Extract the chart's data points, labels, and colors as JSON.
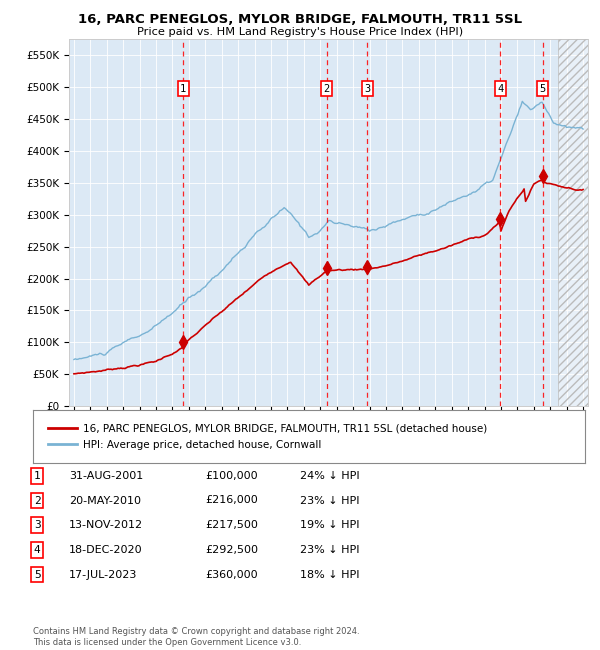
{
  "title": "16, PARC PENEGLOS, MYLOR BRIDGE, FALMOUTH, TR11 5SL",
  "subtitle": "Price paid vs. HM Land Registry's House Price Index (HPI)",
  "background_color": "#dce9f5",
  "hpi_color": "#7ab3d4",
  "price_color": "#cc0000",
  "transactions": [
    {
      "num": 1,
      "date_str": "31-AUG-2001",
      "date_x": 2001.66,
      "price": 100000
    },
    {
      "num": 2,
      "date_str": "20-MAY-2010",
      "date_x": 2010.38,
      "price": 216000
    },
    {
      "num": 3,
      "date_str": "13-NOV-2012",
      "date_x": 2012.87,
      "price": 217500
    },
    {
      "num": 4,
      "date_str": "18-DEC-2020",
      "date_x": 2020.96,
      "price": 292500
    },
    {
      "num": 5,
      "date_str": "17-JUL-2023",
      "date_x": 2023.54,
      "price": 360000
    }
  ],
  "legend_entries": [
    "16, PARC PENEGLOS, MYLOR BRIDGE, FALMOUTH, TR11 5SL (detached house)",
    "HPI: Average price, detached house, Cornwall"
  ],
  "table_rows": [
    [
      "1",
      "31-AUG-2001",
      "£100,000",
      "24% ↓ HPI"
    ],
    [
      "2",
      "20-MAY-2010",
      "£216,000",
      "23% ↓ HPI"
    ],
    [
      "3",
      "13-NOV-2012",
      "£217,500",
      "19% ↓ HPI"
    ],
    [
      "4",
      "18-DEC-2020",
      "£292,500",
      "23% ↓ HPI"
    ],
    [
      "5",
      "17-JUL-2023",
      "£360,000",
      "18% ↓ HPI"
    ]
  ],
  "footer": "Contains HM Land Registry data © Crown copyright and database right 2024.\nThis data is licensed under the Open Government Licence v3.0.",
  "ylim": [
    0,
    575000
  ],
  "xlim_start": 1994.7,
  "xlim_end": 2026.3,
  "yticks": [
    0,
    50000,
    100000,
    150000,
    200000,
    250000,
    300000,
    350000,
    400000,
    450000,
    500000,
    550000
  ],
  "ytick_labels": [
    "£0",
    "£50K",
    "£100K",
    "£150K",
    "£200K",
    "£250K",
    "£300K",
    "£350K",
    "£400K",
    "£450K",
    "£500K",
    "£550K"
  ],
  "xticks": [
    1995,
    1996,
    1997,
    1998,
    1999,
    2000,
    2001,
    2002,
    2003,
    2004,
    2005,
    2006,
    2007,
    2008,
    2009,
    2010,
    2011,
    2012,
    2013,
    2014,
    2015,
    2016,
    2017,
    2018,
    2019,
    2020,
    2021,
    2022,
    2023,
    2024,
    2025,
    2026
  ],
  "hatch_start": 2024.5
}
